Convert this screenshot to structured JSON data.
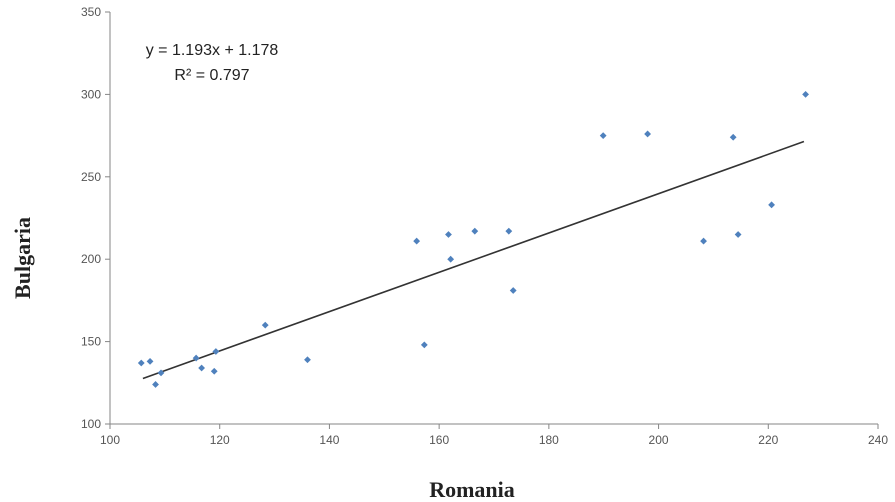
{
  "chart_data": {
    "type": "scatter",
    "xlabel": "Romania",
    "ylabel": "Bulgaria",
    "xlim": [
      100,
      240
    ],
    "ylim": [
      100,
      350
    ],
    "xticks": [
      100,
      120,
      140,
      160,
      180,
      200,
      220,
      240
    ],
    "yticks": [
      100,
      150,
      200,
      250,
      300,
      350
    ],
    "grid": false,
    "series": [
      {
        "color": "#4f81bd",
        "points": [
          [
            105.7,
            137
          ],
          [
            107.3,
            138
          ],
          [
            108.3,
            124
          ],
          [
            109.3,
            131
          ],
          [
            115.7,
            140
          ],
          [
            116.7,
            134
          ],
          [
            119,
            132
          ],
          [
            119.3,
            144
          ],
          [
            128.3,
            160
          ],
          [
            136,
            139
          ],
          [
            155.9,
            211
          ],
          [
            157.3,
            148
          ],
          [
            161.7,
            215
          ],
          [
            162.1,
            200
          ],
          [
            166.5,
            217
          ],
          [
            172.7,
            217
          ],
          [
            173.5,
            181
          ],
          [
            189.9,
            275
          ],
          [
            198,
            276
          ],
          [
            208.2,
            211
          ],
          [
            213.6,
            274
          ],
          [
            214.5,
            215
          ],
          [
            220.6,
            233
          ],
          [
            226.8,
            300
          ]
        ]
      }
    ],
    "trendline": {
      "x_range": [
        106,
        226.5
      ],
      "equation": "y = 1.193x + 1.178",
      "r_squared": "R² = 0.797",
      "color": "#333333"
    }
  }
}
